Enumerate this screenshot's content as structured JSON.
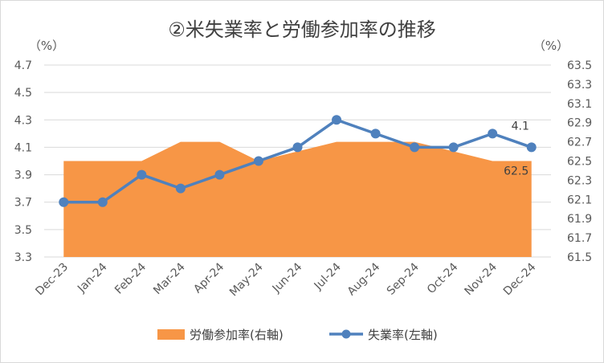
{
  "chart_data": {
    "type": "line",
    "title": "②米失業率と労働参加率の推移",
    "categories": [
      "Dec-23",
      "Jan-24",
      "Feb-24",
      "Mar-24",
      "Apr-24",
      "May-24",
      "Jun-24",
      "Jul-24",
      "Aug-24",
      "Sep-24",
      "Oct-24",
      "Nov-24",
      "Dec-24"
    ],
    "left_axis": {
      "unit": "（%）",
      "ylim": [
        3.3,
        4.7
      ],
      "ticks": [
        "3.3",
        "3.5",
        "3.7",
        "3.9",
        "4.1",
        "4.3",
        "4.5",
        "4.7"
      ]
    },
    "right_axis": {
      "unit": "（%）",
      "ylim": [
        61.5,
        63.5
      ],
      "ticks": [
        "61.5",
        "61.7",
        "61.9",
        "62.1",
        "62.3",
        "62.5",
        "62.7",
        "62.9",
        "63.1",
        "63.3",
        "63.5"
      ]
    },
    "series": [
      {
        "name": "労働参加率(右軸)",
        "type": "area",
        "axis": "right",
        "color": "#f79646",
        "values": [
          62.5,
          62.5,
          62.5,
          62.7,
          62.7,
          62.5,
          62.6,
          62.7,
          62.7,
          62.7,
          62.6,
          62.5,
          62.5
        ],
        "end_label": "62.5"
      },
      {
        "name": "失業率(左軸)",
        "type": "line",
        "axis": "left",
        "color": "#4f81bd",
        "values": [
          3.7,
          3.7,
          3.9,
          3.8,
          3.9,
          4.0,
          4.1,
          4.3,
          4.2,
          4.1,
          4.1,
          4.2,
          4.1
        ],
        "end_label": "4.1"
      }
    ],
    "grid": true,
    "legend": "bottom"
  }
}
